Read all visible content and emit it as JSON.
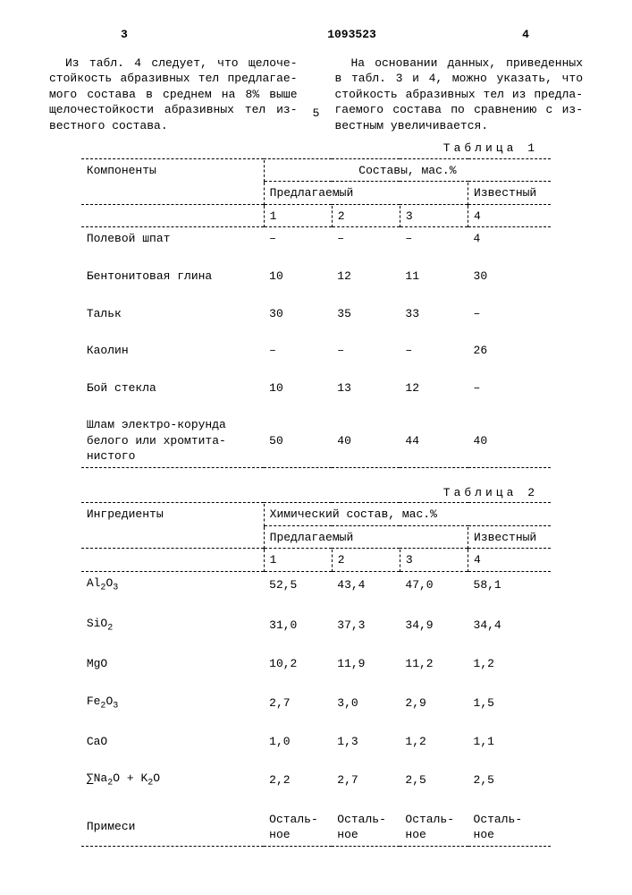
{
  "page": {
    "left_num": "3",
    "patent": "1093523",
    "right_num": "4",
    "line5": "5"
  },
  "paragraphs": {
    "left": "Из табл. 4 следует, что щелоче-стойкость абразивных тел предлагае-мого состава в среднем на 8% выше щелочестойкости абразивных тел из-вестного состава.",
    "right": "На основании данных, приведенных в табл. 3 и 4, можно указать, что стойкость абразивных тел из предла-гаемого состава по сравнению с из-вестным увеличивается."
  },
  "table1": {
    "caption": "Таблица 1",
    "h1": "Компоненты",
    "h2": "Составы, мас.%",
    "h3": "Предлагаемый",
    "h4": "Известный",
    "cols": [
      "1",
      "2",
      "3",
      "4"
    ],
    "rows": [
      {
        "name": "Полевой шпат",
        "v": [
          "–",
          "–",
          "–",
          "4"
        ]
      },
      {
        "name": "Бентонитовая глина",
        "v": [
          "10",
          "12",
          "11",
          "30"
        ]
      },
      {
        "name": "Тальк",
        "v": [
          "30",
          "35",
          "33",
          "–"
        ]
      },
      {
        "name": "Каолин",
        "v": [
          "–",
          "–",
          "–",
          "26"
        ]
      },
      {
        "name": "Бой стекла",
        "v": [
          "10",
          "13",
          "12",
          "–"
        ]
      },
      {
        "name": "Шлам электро-корунда белого или хромтита-нистого",
        "v": [
          "50",
          "40",
          "44",
          "40"
        ]
      }
    ]
  },
  "table2": {
    "caption": "Таблица 2",
    "h1": "Ингредиенты",
    "h2": "Химический состав, мас.%",
    "h3": "Предлагаемый",
    "h4": "Известный",
    "cols": [
      "1",
      "2",
      "3",
      "4"
    ],
    "rows": [
      {
        "name": "Al₂O₃",
        "v": [
          "52,5",
          "43,4",
          "47,0",
          "58,1"
        ]
      },
      {
        "name": "SiO₂",
        "v": [
          "31,0",
          "37,3",
          "34,9",
          "34,4"
        ]
      },
      {
        "name": "MgO",
        "v": [
          "10,2",
          "11,9",
          "11,2",
          "1,2"
        ]
      },
      {
        "name": "Fe₂O₃",
        "v": [
          "2,7",
          "3,0",
          "2,9",
          "1,5"
        ]
      },
      {
        "name": "CaO",
        "v": [
          "1,0",
          "1,3",
          "1,2",
          "1,1"
        ]
      },
      {
        "name": "∑Na₂O + K₂O",
        "v": [
          "2,2",
          "2,7",
          "2,5",
          "2,5"
        ]
      },
      {
        "name": "Примеси",
        "v": [
          "Осталь-ное",
          "Осталь-ное",
          "Осталь-ное",
          "Осталь-ное"
        ]
      }
    ]
  }
}
